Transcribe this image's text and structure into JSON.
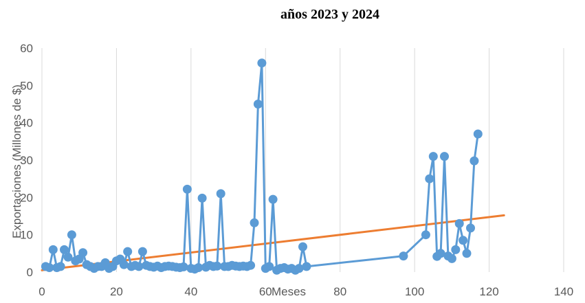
{
  "chart_data": {
    "type": "scatter",
    "title": "años 2023 y 2024",
    "xlabel": "Meses",
    "ylabel": "Exportaciones (Millones de $)",
    "xlim": [
      0,
      140
    ],
    "ylim": [
      0,
      60
    ],
    "x_ticks": [
      "0",
      "20",
      "40",
      "60",
      "80",
      "100",
      "120",
      "140"
    ],
    "y_ticks": [
      "0",
      "10",
      "20",
      "30",
      "40",
      "50",
      "60"
    ],
    "grid": "vertical",
    "legend": "none",
    "colors": {
      "series": "#5B9BD5",
      "trend": "#ED7D31",
      "grid": "#D9D9D9",
      "text": "#595959"
    },
    "series": [
      {
        "points": [
          [
            1,
            1.5
          ],
          [
            2,
            1.2
          ],
          [
            3,
            6
          ],
          [
            4,
            1.2
          ],
          [
            5,
            1.5
          ],
          [
            6,
            6
          ],
          [
            7,
            4
          ],
          [
            8,
            10
          ],
          [
            9,
            3
          ],
          [
            10,
            3.5
          ],
          [
            11,
            5.2
          ],
          [
            12,
            2
          ],
          [
            13,
            1.5
          ],
          [
            14,
            1
          ],
          [
            15,
            1.5
          ],
          [
            16,
            1.5
          ],
          [
            17,
            2.5
          ],
          [
            18,
            1
          ],
          [
            19,
            1.5
          ],
          [
            20,
            3
          ],
          [
            21,
            3.5
          ],
          [
            22,
            2
          ],
          [
            23,
            5.5
          ],
          [
            24,
            1.5
          ],
          [
            25,
            1.8
          ],
          [
            26,
            1.5
          ],
          [
            27,
            5.5
          ],
          [
            28,
            1.8
          ],
          [
            29,
            1.5
          ],
          [
            30,
            1.3
          ],
          [
            31,
            1.6
          ],
          [
            32,
            1.2
          ],
          [
            33,
            1.5
          ],
          [
            34,
            1.6
          ],
          [
            35,
            1.5
          ],
          [
            36,
            1.3
          ],
          [
            37,
            1.2
          ],
          [
            38,
            1.4
          ],
          [
            39,
            22.2
          ],
          [
            40,
            1
          ],
          [
            41,
            0.8
          ],
          [
            42,
            1.2
          ],
          [
            43,
            19.8
          ],
          [
            44,
            1.3
          ],
          [
            45,
            1.8
          ],
          [
            46,
            1.5
          ],
          [
            47,
            1.6
          ],
          [
            48,
            21
          ],
          [
            49,
            1.5
          ],
          [
            50,
            1.5
          ],
          [
            51,
            1.8
          ],
          [
            52,
            1.6
          ],
          [
            53,
            1.5
          ],
          [
            54,
            1.6
          ],
          [
            55,
            1.5
          ],
          [
            56,
            1.8
          ],
          [
            57,
            13.2
          ],
          [
            58,
            45
          ],
          [
            59,
            56
          ],
          [
            60,
            1
          ],
          [
            61,
            1.5
          ],
          [
            62,
            19.5
          ],
          [
            63,
            0.5
          ],
          [
            64,
            1
          ],
          [
            65,
            1.2
          ],
          [
            66,
            0.8
          ],
          [
            67,
            1
          ],
          [
            68,
            0.5
          ],
          [
            69,
            1
          ],
          [
            70,
            6.8
          ],
          [
            71,
            1.5
          ],
          [
            97,
            4.3
          ],
          [
            103,
            10
          ],
          [
            104,
            25
          ],
          [
            105,
            31
          ],
          [
            106,
            4.2
          ],
          [
            107,
            5
          ],
          [
            108,
            31
          ],
          [
            109,
            4.3
          ],
          [
            110,
            3.6
          ],
          [
            111,
            6
          ],
          [
            112,
            13
          ],
          [
            113,
            8.5
          ],
          [
            114,
            5
          ],
          [
            115,
            11.8
          ],
          [
            116,
            29.8
          ],
          [
            117,
            37
          ]
        ]
      }
    ],
    "trendline": {
      "type": "linear",
      "x": [
        0,
        124
      ],
      "y": [
        0.5,
        15.2
      ]
    }
  }
}
